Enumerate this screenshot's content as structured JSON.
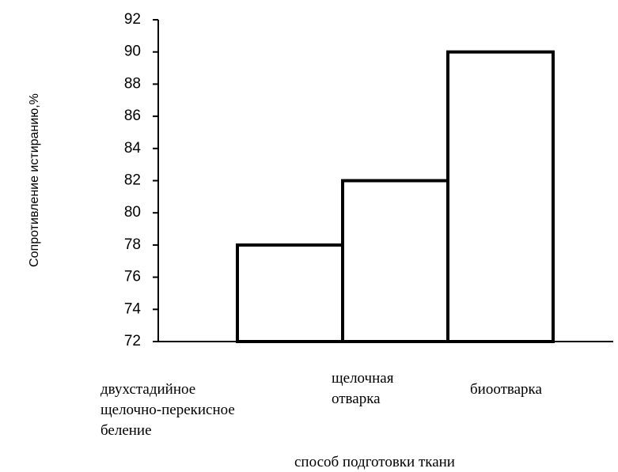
{
  "chart_data": {
    "type": "bar",
    "title": "",
    "xlabel": "способ подготовки ткани",
    "ylabel": "Сопротивление истиранию,%",
    "ylim": [
      72,
      92
    ],
    "yticks": [
      72,
      74,
      76,
      78,
      80,
      82,
      84,
      86,
      88,
      90,
      92
    ],
    "categories": [
      [
        "двухстадийное",
        "щелочно-перекисное",
        "беление"
      ],
      [
        "щелочная",
        "отварка"
      ],
      [
        "биоотварка"
      ]
    ],
    "values": [
      78,
      82,
      90
    ],
    "grid": false,
    "legend": "none"
  }
}
